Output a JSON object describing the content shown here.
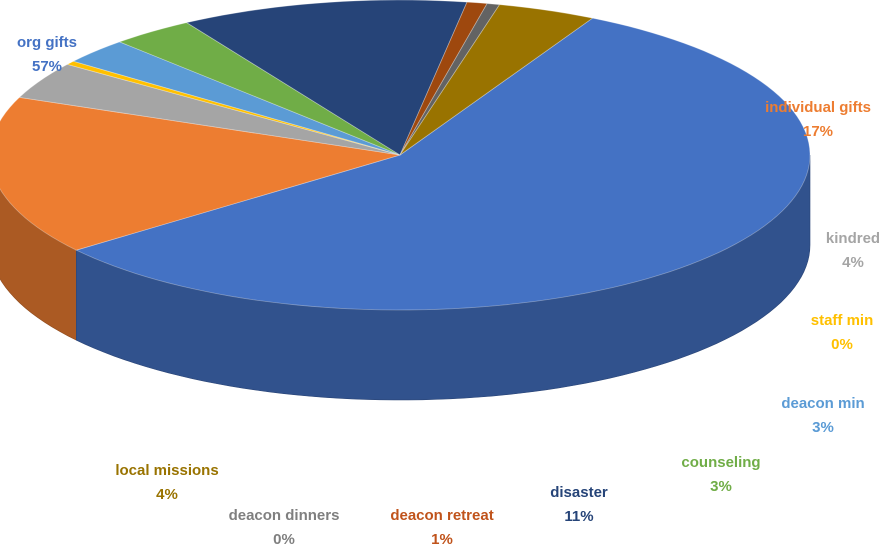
{
  "chart_data": {
    "type": "pie",
    "style": "3d",
    "title": "",
    "slices": [
      {
        "name": "org gifts",
        "pct_label": "57%",
        "value": 57.1,
        "color": "#4472C4",
        "label_color": "#4472C4"
      },
      {
        "name": "individual gifts",
        "pct_label": "17%",
        "value": 16.7,
        "color": "#ED7D31",
        "label_color": "#ED7D31"
      },
      {
        "name": "kindred",
        "pct_label": "4%",
        "value": 3.9,
        "color": "#A5A5A5",
        "label_color": "#A5A5A5"
      },
      {
        "name": "staff min",
        "pct_label": "0%",
        "value": 0.4,
        "color": "#FFC000",
        "label_color": "#FFC000"
      },
      {
        "name": "deacon min",
        "pct_label": "3%",
        "value": 2.7,
        "color": "#5B9BD5",
        "label_color": "#5B9BD5"
      },
      {
        "name": "counseling",
        "pct_label": "3%",
        "value": 3.3,
        "color": "#70AD47",
        "label_color": "#70AD47"
      },
      {
        "name": "disaster",
        "pct_label": "11%",
        "value": 11.4,
        "color": "#264478",
        "label_color": "#264478"
      },
      {
        "name": "deacon retreat",
        "pct_label": "1%",
        "value": 0.8,
        "color": "#9E480E",
        "label_color": "#C0531B"
      },
      {
        "name": "deacon dinners",
        "pct_label": "0%",
        "value": 0.5,
        "color": "#636363",
        "label_color": "#7F7F7F"
      },
      {
        "name": "local missions",
        "pct_label": "4%",
        "value": 3.9,
        "color": "#997300",
        "label_color": "#997300"
      }
    ]
  }
}
